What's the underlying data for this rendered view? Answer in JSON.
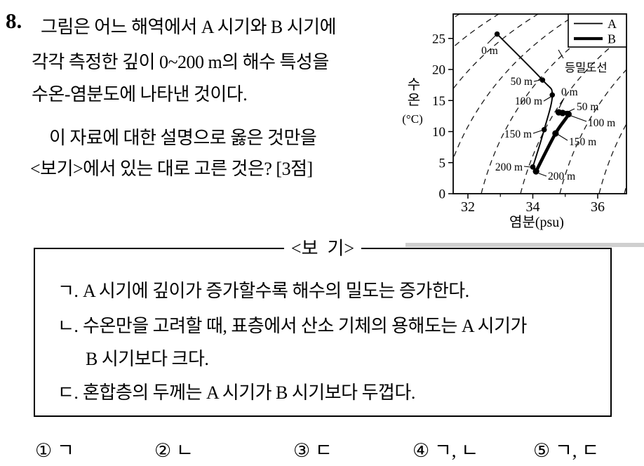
{
  "question": {
    "number": "8.",
    "lines": [
      "그림은 어느 해역에서 A 시기와 B 시기에",
      "각각 측정한 깊이 0~200 m의 해수 특성을",
      "수온-염분도에 나타낸 것이다.",
      "이 자료에 대한 설명으로 옳은 것만을",
      "<보기>에서 있는 대로 고른 것은? [3점]"
    ]
  },
  "figure": {
    "ylabel_stack": [
      "수",
      "온"
    ],
    "ylabel_unit": "(°C)",
    "xlabel": "염분(psu)",
    "x_ticks": [
      "32",
      "34",
      "36"
    ],
    "y_ticks": [
      "0",
      "5",
      "10",
      "15",
      "20",
      "25"
    ],
    "legend": [
      {
        "name": "A",
        "style": "thin"
      },
      {
        "name": "B",
        "style": "thick"
      }
    ],
    "isopycnal_label": "등밀도선"
  },
  "chart_data": {
    "type": "line",
    "title": "수온-염분도 (T-S diagram)",
    "xlabel": "염분(psu)",
    "ylabel": "수온(°C)",
    "xlim": [
      31.5,
      37.0
    ],
    "ylim": [
      0,
      29
    ],
    "x_ticks": [
      32,
      34,
      36
    ],
    "y_ticks": [
      0,
      5,
      10,
      15,
      20,
      25
    ],
    "legend_position": "top-right",
    "grid": false,
    "background_lines": "isopycnal dashed curves rising from lower-left to upper-right",
    "series": [
      {
        "name": "A",
        "line": "thin",
        "points": [
          {
            "depth": "0 m",
            "salinity": 32.9,
            "temp": 25.7
          },
          {
            "depth": "50 m",
            "salinity": 34.3,
            "temp": 18.3
          },
          {
            "depth": "100 m",
            "salinity": 34.6,
            "temp": 15.9
          },
          {
            "depth": "150 m",
            "salinity": 34.35,
            "temp": 10.3
          },
          {
            "depth": "200 m",
            "salinity": 34.0,
            "temp": 4.3
          }
        ]
      },
      {
        "name": "B",
        "line": "thick",
        "points": [
          {
            "depth": "0 m",
            "salinity": 34.8,
            "temp": 13.1
          },
          {
            "depth": "50 m",
            "salinity": 34.92,
            "temp": 13.0
          },
          {
            "depth": "100 m",
            "salinity": 35.1,
            "temp": 12.8
          },
          {
            "depth": "150 m",
            "salinity": 34.7,
            "temp": 9.7
          },
          {
            "depth": "200 m",
            "salinity": 34.1,
            "temp": 3.6
          }
        ]
      }
    ],
    "annotations": [
      "등밀도선"
    ]
  },
  "bogi": {
    "title": "<보  기>",
    "items": [
      {
        "marker": "ㄱ.",
        "text": "A 시기에 깊이가 증가할수록 해수의 밀도는 증가한다."
      },
      {
        "marker": "ㄴ.",
        "text": "수온만을 고려할 때, 표층에서 산소 기체의 용해도는 A 시기가",
        "text2": "B 시기보다 크다."
      },
      {
        "marker": "ㄷ.",
        "text": "혼합층의 두께는 A 시기가 B 시기보다 두껍다."
      }
    ]
  },
  "choices": [
    "① ㄱ",
    "② ㄴ",
    "③ ㄷ",
    "④ ㄱ, ㄴ",
    "⑤ ㄱ, ㄷ"
  ]
}
